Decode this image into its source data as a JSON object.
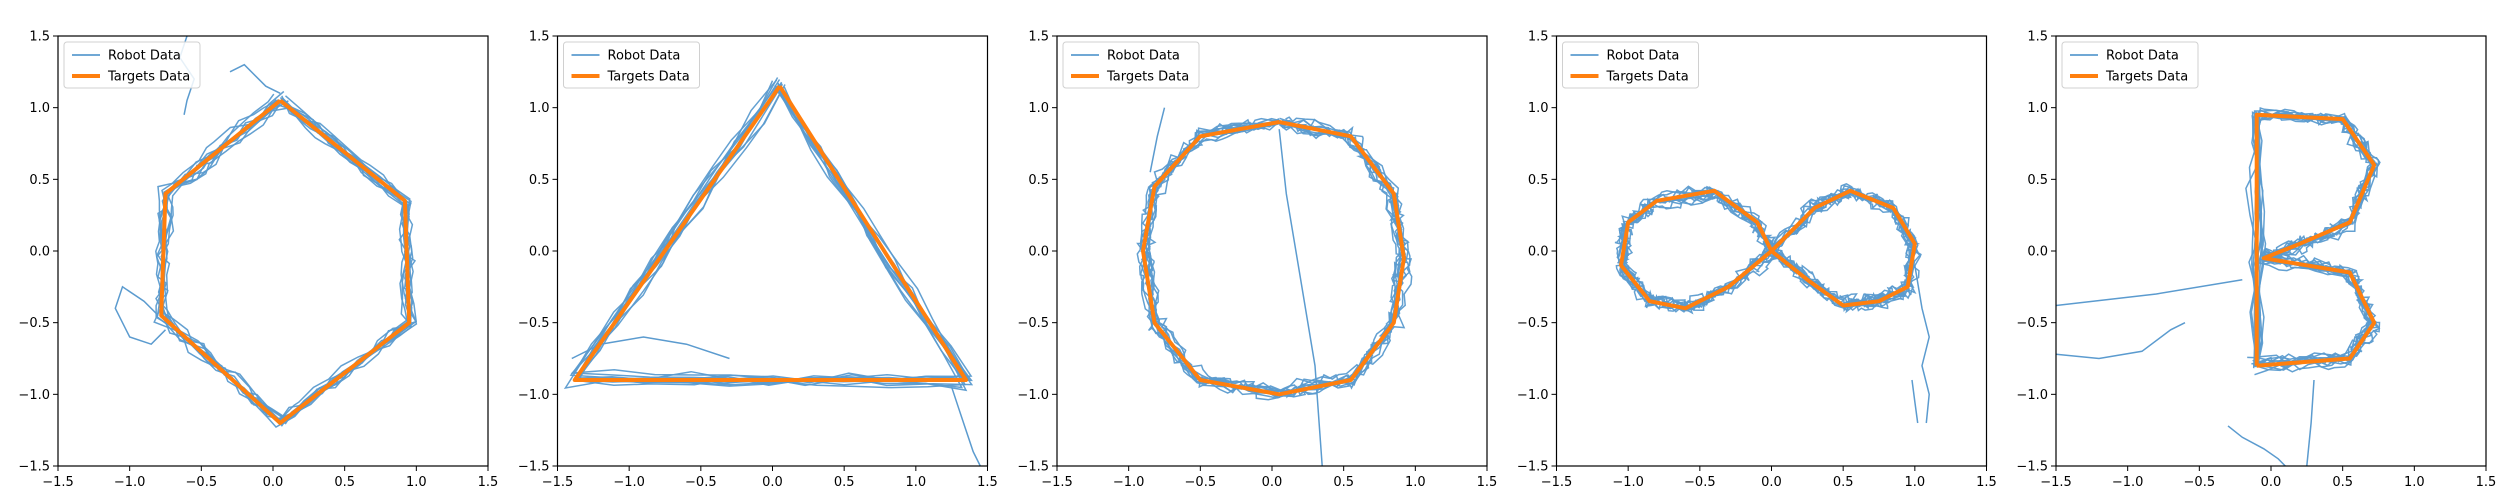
{
  "colors": {
    "robot": "#5b9bcf",
    "target": "#ff7f0e",
    "axis": "#000000"
  },
  "chart_data": [
    {
      "type": "line",
      "shape": "hexagon",
      "xlim": [
        -1.5,
        1.5
      ],
      "ylim": [
        -1.5,
        1.5
      ],
      "xticks": [
        "−1.5",
        "−1.0",
        "−0.5",
        "0.0",
        "0.5",
        "1.0",
        "1.5"
      ],
      "yticks": [
        "−1.5",
        "−1.0",
        "−0.5",
        "0.0",
        "0.5",
        "1.0",
        "1.5"
      ],
      "legend": {
        "position": "top-left",
        "entries": [
          "Robot Data",
          "Targets Data"
        ]
      },
      "target": {
        "name": "Targets Data",
        "x": [
          0.05,
          0.92,
          0.95,
          0.05,
          -0.78,
          -0.75,
          0.05
        ],
        "y": [
          1.05,
          0.35,
          -0.5,
          -1.2,
          -0.45,
          0.4,
          1.05
        ]
      },
      "robot_stray": [
        {
          "x": [
            -0.8,
            -0.9,
            -1.05,
            -1.1,
            -1.0,
            -0.85,
            -0.75
          ],
          "y": [
            -0.45,
            -0.35,
            -0.25,
            -0.4,
            -0.6,
            -0.65,
            -0.55
          ]
        },
        {
          "x": [
            -0.6,
            -0.65,
            -0.55,
            -0.6,
            -0.62
          ],
          "y": [
            1.5,
            1.35,
            1.2,
            1.05,
            0.95
          ]
        },
        {
          "x": [
            -0.3,
            -0.2,
            -0.05,
            0.05
          ],
          "y": [
            1.25,
            1.3,
            1.15,
            1.1
          ]
        }
      ]
    },
    {
      "type": "line",
      "shape": "triangle",
      "xlim": [
        -1.5,
        1.5
      ],
      "ylim": [
        -1.5,
        1.5
      ],
      "xticks": [
        "−1.5",
        "−1.0",
        "−0.5",
        "0.0",
        "0.5",
        "1.0",
        "1.5"
      ],
      "yticks": [
        "−1.5",
        "−1.0",
        "−0.5",
        "0.0",
        "0.5",
        "1.0",
        "1.5"
      ],
      "legend": {
        "position": "top-left",
        "entries": [
          "Robot Data",
          "Targets Data"
        ]
      },
      "target": {
        "name": "Targets Data",
        "x": [
          0.05,
          1.35,
          -1.38,
          0.05
        ],
        "y": [
          1.15,
          -0.9,
          -0.9,
          1.15
        ]
      },
      "robot_stray": [
        {
          "x": [
            1.25,
            1.3,
            1.35,
            1.4,
            1.45
          ],
          "y": [
            -0.95,
            -1.1,
            -1.25,
            -1.4,
            -1.5
          ]
        },
        {
          "x": [
            -1.4,
            -1.2,
            -0.9,
            -0.6,
            -0.3
          ],
          "y": [
            -0.75,
            -0.65,
            -0.6,
            -0.65,
            -0.75
          ]
        }
      ]
    },
    {
      "type": "line",
      "shape": "circle",
      "xlim": [
        -1.5,
        1.5
      ],
      "ylim": [
        -1.5,
        1.5
      ],
      "xticks": [
        "−1.5",
        "−1.0",
        "−0.5",
        "0.0",
        "0.5",
        "1.0",
        "1.5"
      ],
      "yticks": [
        "−1.5",
        "−1.0",
        "−0.5",
        "0.0",
        "0.5",
        "1.0",
        "1.5"
      ],
      "legend": {
        "position": "top-left",
        "entries": [
          "Robot Data",
          "Targets Data"
        ]
      },
      "target": {
        "name": "Targets Data",
        "x": [
          0.05,
          0.55,
          0.85,
          0.92,
          0.85,
          0.55,
          0.05,
          -0.5,
          -0.82,
          -0.9,
          -0.82,
          -0.5,
          0.05
        ],
        "y": [
          0.9,
          0.8,
          0.4,
          -0.05,
          -0.5,
          -0.9,
          -1.0,
          -0.9,
          -0.5,
          0.0,
          0.45,
          0.8,
          0.9
        ]
      },
      "robot_stray": [
        {
          "x": [
            0.05,
            0.1,
            0.2,
            0.3,
            0.35
          ],
          "y": [
            0.85,
            0.4,
            -0.2,
            -0.8,
            -1.5
          ]
        },
        {
          "x": [
            -0.85,
            -0.8,
            -0.75
          ],
          "y": [
            0.55,
            0.8,
            1.0
          ]
        }
      ]
    },
    {
      "type": "line",
      "shape": "infinity",
      "xlim": [
        -1.5,
        1.5
      ],
      "ylim": [
        -1.5,
        1.5
      ],
      "xticks": [
        "−1.5",
        "−1.0",
        "−0.5",
        "0.0",
        "0.5",
        "1.0",
        "1.5"
      ],
      "yticks": [
        "−1.5",
        "−1.0",
        "−0.5",
        "0.0",
        "0.5",
        "1.0",
        "1.5"
      ],
      "legend": {
        "position": "top-left",
        "entries": [
          "Robot Data",
          "Targets Data"
        ]
      },
      "target": {
        "name": "Targets Data",
        "x": [
          0.0,
          0.3,
          0.55,
          0.85,
          1.0,
          0.95,
          0.75,
          0.5,
          0.25,
          0.0,
          -0.3,
          -0.6,
          -0.85,
          -1.05,
          -1.0,
          -0.8,
          -0.4,
          -0.1,
          0.0
        ],
        "y": [
          0.0,
          0.3,
          0.42,
          0.3,
          0.05,
          -0.25,
          -0.35,
          -0.38,
          -0.2,
          0.0,
          -0.25,
          -0.4,
          -0.35,
          -0.1,
          0.2,
          0.35,
          0.42,
          0.2,
          0.0
        ]
      },
      "robot_stray": [
        {
          "x": [
            1.0,
            1.05,
            1.1,
            1.05,
            1.1,
            1.08
          ],
          "y": [
            -0.1,
            -0.4,
            -0.6,
            -0.8,
            -1.0,
            -1.2
          ]
        },
        {
          "x": [
            0.98,
            1.0,
            1.02
          ],
          "y": [
            -0.9,
            -1.05,
            -1.2
          ]
        }
      ]
    },
    {
      "type": "line",
      "shape": "letter-b",
      "xlim": [
        -1.5,
        1.5
      ],
      "ylim": [
        -1.5,
        1.5
      ],
      "xticks": [
        "−1.5",
        "−1.0",
        "−0.5",
        "0.0",
        "0.5",
        "1.0",
        "1.5"
      ],
      "yticks": [
        "−1.5",
        "−1.0",
        "−0.5",
        "0.0",
        "0.5",
        "1.0",
        "1.5"
      ],
      "legend": {
        "position": "top-left",
        "entries": [
          "Robot Data",
          "Targets Data"
        ]
      },
      "target": {
        "name": "Targets Data",
        "x": [
          -0.1,
          -0.1,
          0.5,
          0.72,
          0.55,
          0.2,
          -0.05,
          0.55,
          0.72,
          0.55,
          -0.1
        ],
        "y": [
          -0.8,
          0.95,
          0.92,
          0.6,
          0.2,
          0.05,
          -0.05,
          -0.15,
          -0.5,
          -0.75,
          -0.8
        ]
      },
      "robot_stray": [
        {
          "x": [
            -1.5,
            -0.8,
            -0.2
          ],
          "y": [
            -0.38,
            -0.3,
            -0.2
          ]
        },
        {
          "x": [
            -1.5,
            -1.2,
            -0.9,
            -0.7,
            -0.6
          ],
          "y": [
            -0.72,
            -0.75,
            -0.7,
            -0.55,
            -0.5
          ]
        },
        {
          "x": [
            -0.3,
            -0.2,
            -0.05,
            0.05,
            0.1
          ],
          "y": [
            -1.22,
            -1.3,
            -1.38,
            -1.45,
            -1.5
          ]
        },
        {
          "x": [
            0.3,
            0.28,
            0.25
          ],
          "y": [
            -0.9,
            -1.2,
            -1.5
          ]
        }
      ]
    }
  ]
}
